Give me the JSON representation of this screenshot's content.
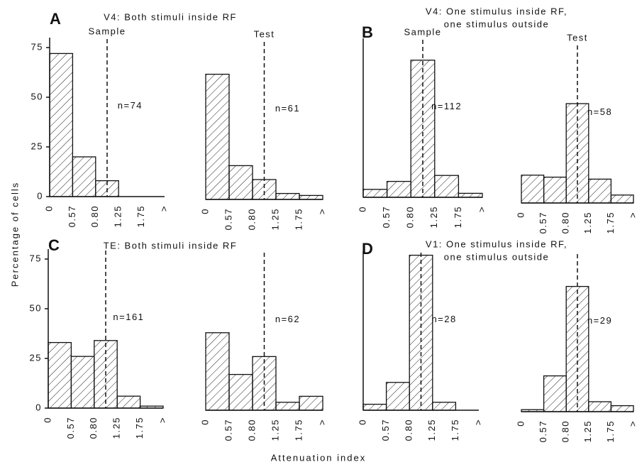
{
  "figure": {
    "ylabel": "Percentage of cells",
    "xlabel": "Attenuation index",
    "panels": [
      {
        "letter": "A",
        "title": [
          "V4: Both stimuli inside RF"
        ]
      },
      {
        "letter": "B",
        "title": [
          "V4: One stimulus inside RF,",
          "one stimulus outside"
        ]
      },
      {
        "letter": "C",
        "title": [
          "TE: Both stimuli inside RF"
        ]
      },
      {
        "letter": "D",
        "title": [
          "V1: One stimulus inside RF,",
          "one stimulus outside"
        ]
      }
    ]
  },
  "chart_data": [
    {
      "type": "histogram",
      "bins": [
        "0",
        "0.57",
        "0.80",
        "1.25",
        "1.75",
        ">"
      ],
      "values": [
        72,
        20,
        8,
        0,
        0
      ],
      "annotation": "n=74",
      "marker_label": "Sample",
      "ylim": [
        0,
        80
      ],
      "yticks": [
        0,
        25,
        50,
        75
      ],
      "y_axis": true
    },
    {
      "type": "histogram",
      "bins": [
        "0",
        "0.57",
        "0.80",
        "1.25",
        "1.75",
        ">"
      ],
      "values": [
        63,
        17,
        10,
        3,
        2
      ],
      "annotation": "n=61",
      "marker_label": "Test",
      "ylim": [
        0,
        80
      ],
      "y_axis": false
    },
    {
      "type": "histogram",
      "bins": [
        "0",
        "0.57",
        "0.80",
        "1.25",
        "1.75",
        ">"
      ],
      "values": [
        4,
        8,
        69,
        11,
        2
      ],
      "annotation": "n=112",
      "marker_label": "Sample",
      "ylim": [
        0,
        80
      ],
      "y_axis": true
    },
    {
      "type": "histogram",
      "bins": [
        "0",
        "0.57",
        "0.80",
        "1.25",
        "1.75",
        ">"
      ],
      "values": [
        14,
        13,
        50,
        12,
        4
      ],
      "annotation": "n=58",
      "marker_label": "Test",
      "ylim": [
        0,
        80
      ],
      "y_axis": false
    },
    {
      "type": "histogram",
      "bins": [
        "0",
        "0.57",
        "0.80",
        "1.25",
        "1.75",
        ">"
      ],
      "values": [
        33,
        26,
        34,
        6,
        1
      ],
      "annotation": "n=161",
      "ylim": [
        0,
        80
      ],
      "yticks": [
        0,
        25,
        50,
        75
      ],
      "y_axis": true
    },
    {
      "type": "histogram",
      "bins": [
        "0",
        "0.57",
        "0.80",
        "1.25",
        "1.75",
        ">"
      ],
      "values": [
        39,
        18,
        27,
        4,
        7
      ],
      "annotation": "n=62",
      "ylim": [
        0,
        80
      ],
      "y_axis": false
    },
    {
      "type": "histogram",
      "bins": [
        "0",
        "0.57",
        "0.80",
        "1.25",
        "1.75",
        ">"
      ],
      "values": [
        3,
        14,
        78,
        4,
        0
      ],
      "annotation": "n=28",
      "ylim": [
        0,
        80
      ],
      "y_axis": true
    },
    {
      "type": "histogram",
      "bins": [
        "0",
        "0.57",
        "0.80",
        "1.25",
        "1.75",
        ">"
      ],
      "values": [
        1,
        18,
        63,
        5,
        3
      ],
      "annotation": "n=29",
      "ylim": [
        0,
        80
      ],
      "y_axis": false
    }
  ]
}
